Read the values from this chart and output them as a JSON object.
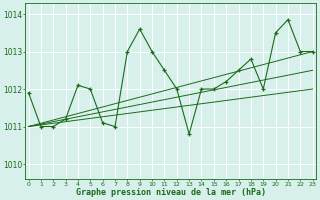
{
  "xlabel": "Graphe pression niveau de la mer (hPa)",
  "hours": [
    0,
    1,
    2,
    3,
    4,
    5,
    6,
    7,
    8,
    9,
    10,
    11,
    12,
    13,
    14,
    15,
    16,
    17,
    18,
    19,
    20,
    21,
    22,
    23
  ],
  "s_main": [
    1011.9,
    1011.0,
    1011.0,
    1011.2,
    1012.1,
    1012.0,
    1011.1,
    1011.0,
    1013.0,
    1013.6,
    1013.0,
    1012.5,
    1012.0,
    1010.8,
    1012.0,
    1012.0,
    1012.2,
    1012.5,
    1012.8,
    1012.0,
    1013.5,
    1013.85,
    1013.0,
    1013.0
  ],
  "line_color": "#1a6b1a",
  "bg_color": "#d8f0ec",
  "grid_color": "#b0ddd5",
  "ylim": [
    1009.6,
    1014.3
  ],
  "yticks": [
    1010,
    1011,
    1012,
    1013,
    1014
  ],
  "xlim": [
    -0.3,
    23.3
  ]
}
